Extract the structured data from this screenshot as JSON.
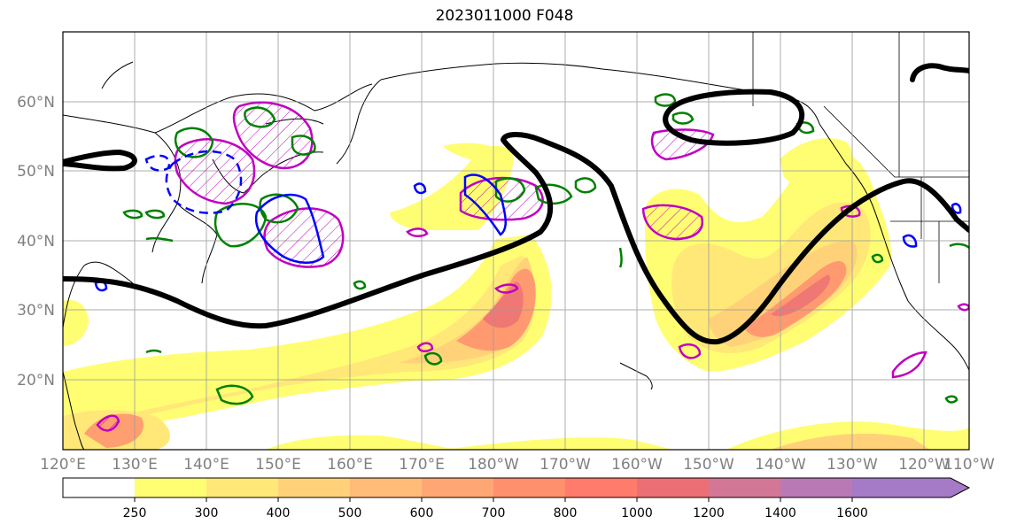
{
  "title": "2023011000 F048",
  "lat_labels": [
    "60°N",
    "50°N",
    "40°N",
    "30°N",
    "20°N"
  ],
  "lon_labels": [
    "120°E",
    "130°E",
    "140°E",
    "150°E",
    "160°E",
    "170°E",
    "180°W",
    "170°W",
    "160°W",
    "150°W",
    "140°W",
    "130°W",
    "120°W",
    "110°W"
  ],
  "colorbar": {
    "ticks": [
      "250",
      "300",
      "400",
      "500",
      "600",
      "700",
      "800",
      "1000",
      "1200",
      "1400",
      "1600"
    ],
    "colors": [
      "#ffffff",
      "#fffe73",
      "#ffe877",
      "#ffd279",
      "#ffbc78",
      "#ffa774",
      "#ff906e",
      "#ff7b6b",
      "#ec6f76",
      "#d27796",
      "#b979b5",
      "#a57ac6"
    ],
    "extend": "max"
  },
  "map_style": {
    "ivt_shading": "yellow-orange-red-purple fill",
    "jet_contour_color": "#000000",
    "green_contour_color": "#008000",
    "blue_contour_color": "#0000ff",
    "magenta_contour_color": "#c000c0",
    "grid": true,
    "coastlines": true
  }
}
